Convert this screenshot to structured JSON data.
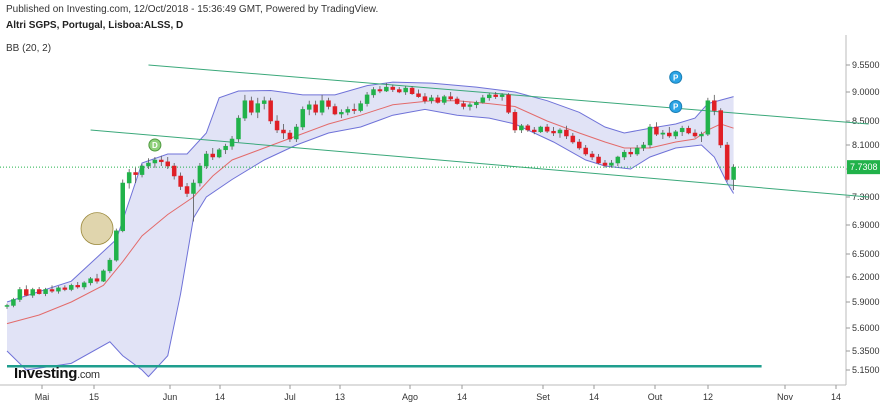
{
  "header": {
    "published": "Published on Investing.com, 12/Oct/2018 - 15:36:49 GMT, Powered by TradingView.",
    "symbol": "Altri SGPS, Portugal, Lisboa:ALSS, D",
    "indicator": "BB (20, 2)"
  },
  "logo": {
    "main": "Investing",
    "suffix": ".com"
  },
  "chart_data": {
    "type": "candlestick",
    "title": "Altri SGPS, Portugal, Lisboa:ALSS, D",
    "indicator": "BB (20, 2)",
    "last_price": "7.7308",
    "ylim": [
      5.1,
      9.7
    ],
    "y_ticks": [
      "9.5500",
      "9.0000",
      "8.5000",
      "8.1000",
      "7.7000",
      "7.3000",
      "6.9000",
      "6.5000",
      "6.2000",
      "5.9000",
      "5.6000",
      "5.3500",
      "5.1500"
    ],
    "x_ticks": [
      "Mai",
      "15",
      "Jun",
      "14",
      "Jul",
      "13",
      "Ago",
      "14",
      "Set",
      "14",
      "Out",
      "12",
      "Nov",
      "14"
    ],
    "colors": {
      "up": "#21b24a",
      "down": "#e01f26",
      "band_fill": "#c9ccee",
      "band_line": "#6f72d8",
      "basis": "#e36b6b",
      "channel": "#3aa87a",
      "support": "#1f9e8e",
      "last_price_line": "#21b24a"
    },
    "candles": [
      [
        5.85,
        5.88,
        5.82,
        5.86
      ],
      [
        5.86,
        5.95,
        5.84,
        5.93
      ],
      [
        5.93,
        6.08,
        5.9,
        6.05
      ],
      [
        6.05,
        6.1,
        5.97,
        5.98
      ],
      [
        5.98,
        6.07,
        5.95,
        6.05
      ],
      [
        6.05,
        6.08,
        5.99,
        6.0
      ],
      [
        6.0,
        6.07,
        5.97,
        6.05
      ],
      [
        6.05,
        6.1,
        6.01,
        6.03
      ],
      [
        6.03,
        6.09,
        6.0,
        6.07
      ],
      [
        6.07,
        6.1,
        6.03,
        6.05
      ],
      [
        6.05,
        6.12,
        6.03,
        6.1
      ],
      [
        6.1,
        6.14,
        6.06,
        6.08
      ],
      [
        6.08,
        6.15,
        6.05,
        6.13
      ],
      [
        6.13,
        6.2,
        6.1,
        6.18
      ],
      [
        6.18,
        6.24,
        6.12,
        6.15
      ],
      [
        6.15,
        6.3,
        6.14,
        6.28
      ],
      [
        6.28,
        6.45,
        6.25,
        6.42
      ],
      [
        6.42,
        6.85,
        6.4,
        6.82
      ],
      [
        6.82,
        7.55,
        6.8,
        7.5
      ],
      [
        7.5,
        7.7,
        7.42,
        7.65
      ],
      [
        7.65,
        7.72,
        7.5,
        7.62
      ],
      [
        7.62,
        7.78,
        7.58,
        7.75
      ],
      [
        7.75,
        7.88,
        7.7,
        7.8
      ],
      [
        7.8,
        7.9,
        7.72,
        7.85
      ],
      [
        7.85,
        7.92,
        7.75,
        7.82
      ],
      [
        7.82,
        7.9,
        7.7,
        7.75
      ],
      [
        7.75,
        7.8,
        7.55,
        7.6
      ],
      [
        7.6,
        7.65,
        7.4,
        7.45
      ],
      [
        7.45,
        7.5,
        7.3,
        7.35
      ],
      [
        7.35,
        7.55,
        6.95,
        7.5
      ],
      [
        7.5,
        7.8,
        7.45,
        7.75
      ],
      [
        7.75,
        8.0,
        7.7,
        7.95
      ],
      [
        7.95,
        8.05,
        7.85,
        7.9
      ],
      [
        7.9,
        8.05,
        7.88,
        8.02
      ],
      [
        8.02,
        8.12,
        7.95,
        8.08
      ],
      [
        8.08,
        8.25,
        8.02,
        8.2
      ],
      [
        8.2,
        8.6,
        8.15,
        8.55
      ],
      [
        8.55,
        8.95,
        8.5,
        8.85
      ],
      [
        8.85,
        8.92,
        8.6,
        8.65
      ],
      [
        8.65,
        8.9,
        8.55,
        8.8
      ],
      [
        8.8,
        8.92,
        8.7,
        8.85
      ],
      [
        8.85,
        8.9,
        8.45,
        8.5
      ],
      [
        8.5,
        8.6,
        8.3,
        8.35
      ],
      [
        8.35,
        8.45,
        8.2,
        8.3
      ],
      [
        8.3,
        8.35,
        8.15,
        8.2
      ],
      [
        8.2,
        8.45,
        8.15,
        8.4
      ],
      [
        8.4,
        8.75,
        8.35,
        8.7
      ],
      [
        8.7,
        8.85,
        8.6,
        8.78
      ],
      [
        8.78,
        8.85,
        8.6,
        8.65
      ],
      [
        8.65,
        8.95,
        8.6,
        8.85
      ],
      [
        8.85,
        8.9,
        8.7,
        8.75
      ],
      [
        8.75,
        8.8,
        8.6,
        8.62
      ],
      [
        8.62,
        8.7,
        8.55,
        8.65
      ],
      [
        8.65,
        8.75,
        8.6,
        8.7
      ],
      [
        8.7,
        8.8,
        8.62,
        8.68
      ],
      [
        8.68,
        8.85,
        8.65,
        8.8
      ],
      [
        8.8,
        9.0,
        8.75,
        8.95
      ],
      [
        8.95,
        9.1,
        8.9,
        9.05
      ],
      [
        9.05,
        9.12,
        8.98,
        9.02
      ],
      [
        9.02,
        9.18,
        9.0,
        9.1
      ],
      [
        9.1,
        9.15,
        9.0,
        9.05
      ],
      [
        9.05,
        9.1,
        8.98,
        9.0
      ],
      [
        9.0,
        9.12,
        8.95,
        9.08
      ],
      [
        9.08,
        9.12,
        8.95,
        8.97
      ],
      [
        8.97,
        9.05,
        8.9,
        8.92
      ],
      [
        8.92,
        8.98,
        8.8,
        8.85
      ],
      [
        8.85,
        8.95,
        8.8,
        8.9
      ],
      [
        8.9,
        8.95,
        8.8,
        8.82
      ],
      [
        8.82,
        8.95,
        8.78,
        8.92
      ],
      [
        8.92,
        9.0,
        8.85,
        8.88
      ],
      [
        8.88,
        8.92,
        8.78,
        8.8
      ],
      [
        8.8,
        8.85,
        8.7,
        8.75
      ],
      [
        8.75,
        8.82,
        8.68,
        8.78
      ],
      [
        8.78,
        8.85,
        8.72,
        8.82
      ],
      [
        8.82,
        8.95,
        8.8,
        8.9
      ],
      [
        8.9,
        8.98,
        8.85,
        8.95
      ],
      [
        8.95,
        9.0,
        8.88,
        8.92
      ],
      [
        8.92,
        8.98,
        8.85,
        8.95
      ],
      [
        8.95,
        8.98,
        8.62,
        8.65
      ],
      [
        8.65,
        8.7,
        8.3,
        8.35
      ],
      [
        8.35,
        8.45,
        8.3,
        8.42
      ],
      [
        8.42,
        8.45,
        8.32,
        8.35
      ],
      [
        8.35,
        8.4,
        8.28,
        8.32
      ],
      [
        8.32,
        8.42,
        8.3,
        8.4
      ],
      [
        8.4,
        8.45,
        8.3,
        8.33
      ],
      [
        8.33,
        8.4,
        8.25,
        8.3
      ],
      [
        8.3,
        8.38,
        8.22,
        8.35
      ],
      [
        8.35,
        8.42,
        8.2,
        8.25
      ],
      [
        8.25,
        8.3,
        8.12,
        8.15
      ],
      [
        8.15,
        8.2,
        8.02,
        8.05
      ],
      [
        8.05,
        8.1,
        7.92,
        7.95
      ],
      [
        7.95,
        8.0,
        7.85,
        7.9
      ],
      [
        7.9,
        7.95,
        7.78,
        7.8
      ],
      [
        7.8,
        7.85,
        7.72,
        7.76
      ],
      [
        7.76,
        7.85,
        7.72,
        7.8
      ],
      [
        7.8,
        7.92,
        7.75,
        7.9
      ],
      [
        7.9,
        8.02,
        7.85,
        7.98
      ],
      [
        7.98,
        8.05,
        7.9,
        7.95
      ],
      [
        7.95,
        8.1,
        7.92,
        8.05
      ],
      [
        8.05,
        8.15,
        8.0,
        8.1
      ],
      [
        8.1,
        8.45,
        8.05,
        8.4
      ],
      [
        8.4,
        8.48,
        8.25,
        8.28
      ],
      [
        8.28,
        8.35,
        8.2,
        8.3
      ],
      [
        8.3,
        8.4,
        8.22,
        8.25
      ],
      [
        8.25,
        8.35,
        8.2,
        8.32
      ],
      [
        8.32,
        8.42,
        8.25,
        8.38
      ],
      [
        8.38,
        8.42,
        8.28,
        8.3
      ],
      [
        8.3,
        8.36,
        8.22,
        8.25
      ],
      [
        8.25,
        8.32,
        8.15,
        8.28
      ],
      [
        8.28,
        8.9,
        8.25,
        8.85
      ],
      [
        8.85,
        8.95,
        8.6,
        8.68
      ],
      [
        8.68,
        8.72,
        8.05,
        8.1
      ],
      [
        8.1,
        8.15,
        7.52,
        7.55
      ],
      [
        7.55,
        7.78,
        7.4,
        7.73
      ]
    ],
    "upper_band": [
      [
        0,
        5.9
      ],
      [
        10,
        6.15
      ],
      [
        17,
        6.7
      ],
      [
        21,
        7.8
      ],
      [
        25,
        7.95
      ],
      [
        28,
        7.95
      ],
      [
        31,
        8.3
      ],
      [
        33,
        8.9
      ],
      [
        36,
        9.02
      ],
      [
        41,
        9.03
      ],
      [
        46,
        8.95
      ],
      [
        51,
        8.95
      ],
      [
        56,
        9.13
      ],
      [
        60,
        9.2
      ],
      [
        66,
        9.18
      ],
      [
        73,
        9.1
      ],
      [
        79,
        9.0
      ],
      [
        84,
        8.85
      ],
      [
        89,
        8.65
      ],
      [
        93,
        8.4
      ],
      [
        96,
        8.3
      ],
      [
        100,
        8.38
      ],
      [
        104,
        8.45
      ],
      [
        107,
        8.55
      ],
      [
        109,
        8.8
      ],
      [
        113,
        8.92
      ]
    ],
    "lower_band": [
      [
        0,
        5.35
      ],
      [
        3,
        5.15
      ],
      [
        10,
        5.22
      ],
      [
        16,
        5.45
      ],
      [
        18,
        5.3
      ],
      [
        21,
        5.15
      ],
      [
        22,
        5.08
      ],
      [
        25,
        5.3
      ],
      [
        27,
        6.0
      ],
      [
        29,
        7.0
      ],
      [
        31,
        7.3
      ],
      [
        35,
        7.55
      ],
      [
        40,
        7.85
      ],
      [
        45,
        8.1
      ],
      [
        50,
        8.3
      ],
      [
        55,
        8.4
      ],
      [
        60,
        8.6
      ],
      [
        65,
        8.7
      ],
      [
        70,
        8.6
      ],
      [
        75,
        8.55
      ],
      [
        79,
        8.45
      ],
      [
        85,
        8.15
      ],
      [
        90,
        7.85
      ],
      [
        93,
        7.75
      ],
      [
        97,
        7.7
      ],
      [
        100,
        7.9
      ],
      [
        104,
        8.05
      ],
      [
        108,
        8.1
      ],
      [
        110,
        7.9
      ],
      [
        112,
        7.5
      ],
      [
        113,
        7.35
      ]
    ],
    "basis": [
      [
        0,
        5.65
      ],
      [
        5,
        5.75
      ],
      [
        10,
        5.9
      ],
      [
        15,
        6.1
      ],
      [
        18,
        6.4
      ],
      [
        21,
        6.75
      ],
      [
        25,
        7.05
      ],
      [
        29,
        7.3
      ],
      [
        32,
        7.6
      ],
      [
        35,
        7.85
      ],
      [
        40,
        8.05
      ],
      [
        45,
        8.25
      ],
      [
        50,
        8.45
      ],
      [
        55,
        8.6
      ],
      [
        60,
        8.78
      ],
      [
        66,
        8.85
      ],
      [
        70,
        8.85
      ],
      [
        75,
        8.8
      ],
      [
        79,
        8.75
      ],
      [
        84,
        8.5
      ],
      [
        89,
        8.3
      ],
      [
        93,
        8.15
      ],
      [
        96,
        8.05
      ],
      [
        100,
        8.05
      ],
      [
        104,
        8.15
      ],
      [
        107,
        8.2
      ],
      [
        109,
        8.35
      ],
      [
        111,
        8.45
      ],
      [
        113,
        8.38
      ]
    ],
    "channel_upper": {
      "from": [
        22,
        9.55
      ],
      "to": [
        134,
        8.45
      ]
    },
    "channel_lower": {
      "from": [
        13,
        8.35
      ],
      "to": [
        134,
        7.3
      ]
    },
    "support_level": 5.19,
    "event_markers": [
      "D",
      "P",
      "P"
    ]
  }
}
